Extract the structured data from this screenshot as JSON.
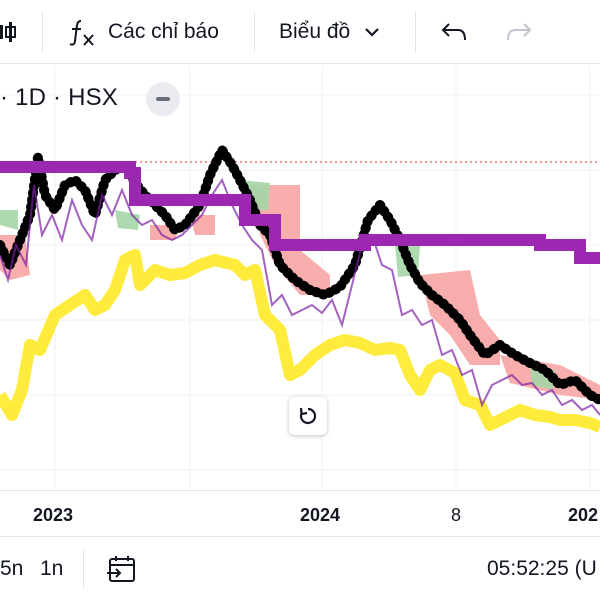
{
  "toolbar": {
    "indicators_label": "Các chỉ báo",
    "chart_type_label": "Biểu đồ"
  },
  "legend": {
    "text": "· 1D · HSX"
  },
  "axis": {
    "ticks": [
      "2023",
      "2024",
      "8",
      "202"
    ]
  },
  "bottom": {
    "range_5n": "5n",
    "range_1n": "1n",
    "clock": "05:52:25 (U"
  },
  "colors": {
    "ichimoku_line": "#9c27b0",
    "price_dots": "#000000",
    "yellow_band": "#ffeb3b",
    "cloud_red": "#f8a5a5",
    "cloud_green": "#a5d6a7",
    "reference_line": "#e53935"
  },
  "icons": [
    "indicator-fx-icon",
    "chevron-down-icon",
    "undo-icon",
    "redo-icon",
    "reset-zoom-icon",
    "date-range-icon"
  ]
}
